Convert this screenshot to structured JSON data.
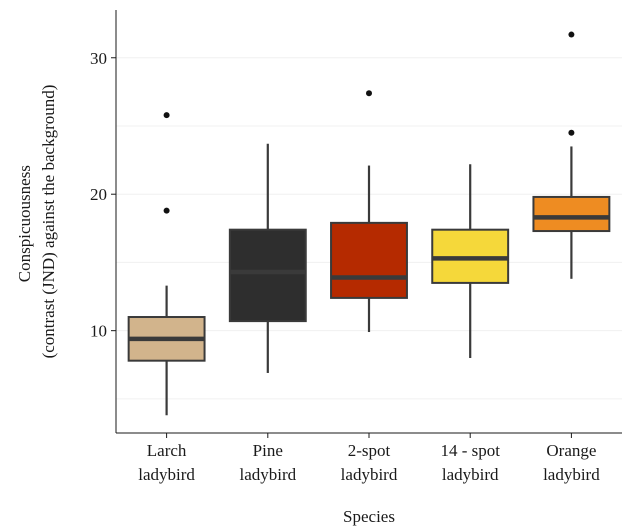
{
  "chart_data": {
    "type": "boxplot",
    "xlabel": "Species",
    "ylabel": [
      "Conspicuousness",
      "(contrast (JND) against the background)"
    ],
    "ylim": [
      2.5,
      33.5
    ],
    "yticks": [
      10,
      20,
      30
    ],
    "grid": true,
    "categories": [
      {
        "lines": [
          "Larch",
          "ladybird"
        ]
      },
      {
        "lines": [
          "Pine",
          "ladybird"
        ]
      },
      {
        "lines": [
          "2-spot",
          "ladybird"
        ]
      },
      {
        "lines": [
          "14 - spot",
          "ladybird"
        ]
      },
      {
        "lines": [
          "Orange",
          "ladybird"
        ]
      }
    ],
    "boxes": [
      {
        "whisker_low": 3.8,
        "q1": 7.8,
        "median": 9.4,
        "q3": 11.0,
        "whisker_high": 13.3,
        "outliers": [
          18.8,
          25.8
        ],
        "color": "#d2b48c"
      },
      {
        "whisker_low": 6.9,
        "q1": 10.7,
        "median": 14.3,
        "q3": 17.4,
        "whisker_high": 23.7,
        "outliers": [],
        "color": "#2e2e2e"
      },
      {
        "whisker_low": 9.9,
        "q1": 12.4,
        "median": 13.9,
        "q3": 17.9,
        "whisker_high": 22.1,
        "outliers": [
          27.4
        ],
        "color": "#b52a00"
      },
      {
        "whisker_low": 8.0,
        "q1": 13.5,
        "median": 15.3,
        "q3": 17.4,
        "whisker_high": 22.2,
        "outliers": [],
        "color": "#f5d83a"
      },
      {
        "whisker_low": 13.8,
        "q1": 17.3,
        "median": 18.3,
        "q3": 19.8,
        "whisker_high": 23.5,
        "outliers": [
          24.5,
          31.7
        ],
        "color": "#ee8c22"
      }
    ]
  }
}
